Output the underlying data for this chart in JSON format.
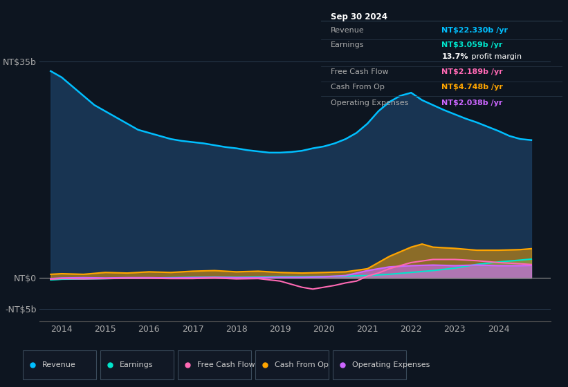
{
  "background_color": "#0d1520",
  "plot_bg_color": "#0d1520",
  "ylabel_35b": "NT$35b",
  "ylabel_0": "NT$0",
  "ylabel_neg5b": "-NT$5b",
  "x_ticks": [
    2014,
    2015,
    2016,
    2017,
    2018,
    2019,
    2020,
    2021,
    2022,
    2023,
    2024
  ],
  "ylim_min": -7000000000,
  "ylim_max": 40000000000,
  "info_box": {
    "title": "Sep 30 2024",
    "rows": [
      {
        "label": "Revenue",
        "value": "NT$22.330b /yr",
        "value_color": "#00bfff"
      },
      {
        "label": "Earnings",
        "value": "NT$3.059b /yr",
        "value_color": "#00e5cc"
      },
      {
        "label": "",
        "value": "13.7% profit margin",
        "value_color": "#ffffff",
        "bold_part": "13.7%"
      },
      {
        "label": "Free Cash Flow",
        "value": "NT$2.189b /yr",
        "value_color": "#ff69b4"
      },
      {
        "label": "Cash From Op",
        "value": "NT$4.748b /yr",
        "value_color": "#ffa500"
      },
      {
        "label": "Operating Expenses",
        "value": "NT$2.038b /yr",
        "value_color": "#cc66ff"
      }
    ]
  },
  "revenue_x": [
    2013.75,
    2014.0,
    2014.25,
    2014.5,
    2014.75,
    2015.0,
    2015.25,
    2015.5,
    2015.75,
    2016.0,
    2016.25,
    2016.5,
    2016.75,
    2017.0,
    2017.25,
    2017.5,
    2017.75,
    2018.0,
    2018.25,
    2018.5,
    2018.75,
    2019.0,
    2019.25,
    2019.5,
    2019.75,
    2020.0,
    2020.25,
    2020.5,
    2020.75,
    2021.0,
    2021.25,
    2021.5,
    2021.75,
    2022.0,
    2022.25,
    2022.5,
    2022.75,
    2023.0,
    2023.25,
    2023.5,
    2023.75,
    2024.0,
    2024.25,
    2024.5,
    2024.75
  ],
  "revenue_y": [
    33.5,
    32.5,
    31.0,
    29.5,
    28.0,
    27.0,
    26.0,
    25.0,
    24.0,
    23.5,
    23.0,
    22.5,
    22.2,
    22.0,
    21.8,
    21.5,
    21.2,
    21.0,
    20.7,
    20.5,
    20.3,
    20.3,
    20.4,
    20.6,
    21.0,
    21.3,
    21.8,
    22.5,
    23.5,
    25.0,
    27.0,
    28.5,
    29.5,
    30.0,
    28.8,
    28.0,
    27.2,
    26.5,
    25.8,
    25.2,
    24.5,
    23.8,
    23.0,
    22.5,
    22.33
  ],
  "revenue_color": "#00bfff",
  "revenue_fill_color": "#1a3a5c",
  "earnings_x": [
    2013.75,
    2014.0,
    2014.5,
    2015.0,
    2015.5,
    2016.0,
    2016.5,
    2017.0,
    2017.5,
    2018.0,
    2018.5,
    2019.0,
    2019.5,
    2020.0,
    2020.5,
    2021.0,
    2021.5,
    2022.0,
    2022.5,
    2023.0,
    2023.5,
    2024.0,
    2024.5,
    2024.75
  ],
  "earnings_y": [
    -0.3,
    -0.2,
    -0.15,
    -0.1,
    -0.05,
    0.0,
    0.05,
    0.1,
    0.15,
    0.1,
    0.15,
    0.2,
    0.2,
    0.25,
    0.3,
    0.4,
    0.6,
    0.9,
    1.2,
    1.6,
    2.2,
    2.6,
    2.9,
    3.059
  ],
  "earnings_color": "#00e5cc",
  "fcf_x": [
    2013.75,
    2014.0,
    2014.5,
    2015.0,
    2015.5,
    2016.0,
    2016.5,
    2017.0,
    2017.5,
    2018.0,
    2018.5,
    2019.0,
    2019.25,
    2019.5,
    2019.75,
    2020.0,
    2020.25,
    2020.5,
    2020.75,
    2021.0,
    2021.25,
    2021.5,
    2022.0,
    2022.5,
    2023.0,
    2023.5,
    2024.0,
    2024.5,
    2024.75
  ],
  "fcf_y": [
    -0.2,
    -0.1,
    -0.15,
    -0.1,
    -0.05,
    -0.05,
    -0.1,
    -0.1,
    0.0,
    -0.15,
    -0.1,
    -0.5,
    -1.0,
    -1.5,
    -1.8,
    -1.5,
    -1.2,
    -0.8,
    -0.5,
    0.3,
    0.8,
    1.5,
    2.5,
    3.0,
    3.0,
    2.8,
    2.5,
    2.3,
    2.189
  ],
  "fcf_color": "#ff69b4",
  "cashop_x": [
    2013.75,
    2014.0,
    2014.5,
    2015.0,
    2015.5,
    2016.0,
    2016.5,
    2017.0,
    2017.5,
    2018.0,
    2018.5,
    2019.0,
    2019.5,
    2020.0,
    2020.5,
    2021.0,
    2021.25,
    2021.5,
    2022.0,
    2022.25,
    2022.5,
    2023.0,
    2023.5,
    2024.0,
    2024.5,
    2024.75
  ],
  "cashop_y": [
    0.6,
    0.7,
    0.6,
    0.9,
    0.8,
    1.0,
    0.9,
    1.1,
    1.2,
    1.0,
    1.1,
    0.9,
    0.8,
    0.9,
    1.0,
    1.5,
    2.5,
    3.5,
    5.0,
    5.5,
    5.0,
    4.8,
    4.5,
    4.5,
    4.6,
    4.748
  ],
  "cashop_color": "#ffa500",
  "opex_x": [
    2013.75,
    2014.0,
    2014.5,
    2015.0,
    2015.5,
    2016.0,
    2016.5,
    2017.0,
    2017.5,
    2018.0,
    2018.5,
    2019.0,
    2019.5,
    2020.0,
    2020.5,
    2021.0,
    2021.5,
    2022.0,
    2022.5,
    2023.0,
    2023.5,
    2024.0,
    2024.5,
    2024.75
  ],
  "opex_y": [
    -0.1,
    0.0,
    0.05,
    0.0,
    0.05,
    0.05,
    0.0,
    0.05,
    0.1,
    0.05,
    0.05,
    0.1,
    0.1,
    0.2,
    0.4,
    1.2,
    1.8,
    2.0,
    2.1,
    2.0,
    2.1,
    2.0,
    2.0,
    2.038
  ],
  "opex_color": "#cc66ff",
  "legend_items": [
    {
      "label": "Revenue",
      "color": "#00bfff"
    },
    {
      "label": "Earnings",
      "color": "#00e5cc"
    },
    {
      "label": "Free Cash Flow",
      "color": "#ff69b4"
    },
    {
      "label": "Cash From Op",
      "color": "#ffa500"
    },
    {
      "label": "Operating Expenses",
      "color": "#cc66ff"
    }
  ]
}
